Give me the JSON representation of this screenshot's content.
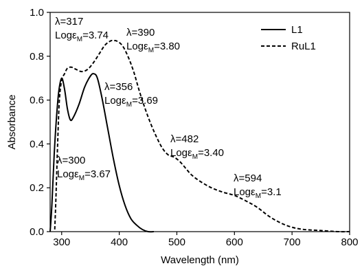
{
  "chart_data": {
    "type": "line",
    "xlabel": "Wavelength (nm)",
    "ylabel": "Absorbance",
    "xlim": [
      280,
      800
    ],
    "ylim": [
      0.0,
      1.0
    ],
    "x_ticks": [
      300,
      400,
      500,
      600,
      700,
      800
    ],
    "x_tick_labels": [
      "300",
      "400",
      "500",
      "600",
      "700",
      "800"
    ],
    "y_ticks": [
      0.0,
      0.2,
      0.4,
      0.6,
      0.8,
      1.0
    ],
    "y_tick_labels": [
      "0.0",
      "0.2",
      "0.4",
      "0.6",
      "0.8",
      "1.0"
    ],
    "grid": false,
    "legend_position": "top-right",
    "legend": [
      {
        "label": "L1",
        "style": "solid"
      },
      {
        "label": "RuL1",
        "style": "dashed"
      }
    ],
    "series": [
      {
        "name": "L1",
        "style": "solid",
        "color": "#000000",
        "points": [
          [
            280,
            0.0
          ],
          [
            283,
            0.12
          ],
          [
            287,
            0.35
          ],
          [
            291,
            0.52
          ],
          [
            295,
            0.64
          ],
          [
            300,
            0.7
          ],
          [
            305,
            0.65
          ],
          [
            310,
            0.56
          ],
          [
            315,
            0.51
          ],
          [
            320,
            0.52
          ],
          [
            330,
            0.58
          ],
          [
            340,
            0.66
          ],
          [
            350,
            0.71
          ],
          [
            356,
            0.72
          ],
          [
            362,
            0.7
          ],
          [
            370,
            0.61
          ],
          [
            380,
            0.47
          ],
          [
            390,
            0.33
          ],
          [
            400,
            0.21
          ],
          [
            410,
            0.12
          ],
          [
            420,
            0.06
          ],
          [
            430,
            0.03
          ],
          [
            440,
            0.01
          ],
          [
            450,
            0.0
          ],
          [
            460,
            0.0
          ]
        ]
      },
      {
        "name": "RuL1",
        "style": "dashed",
        "color": "#000000",
        "points": [
          [
            288,
            0.01
          ],
          [
            290,
            0.15
          ],
          [
            293,
            0.4
          ],
          [
            296,
            0.6
          ],
          [
            300,
            0.69
          ],
          [
            305,
            0.72
          ],
          [
            310,
            0.745
          ],
          [
            317,
            0.75
          ],
          [
            325,
            0.74
          ],
          [
            335,
            0.73
          ],
          [
            345,
            0.74
          ],
          [
            355,
            0.77
          ],
          [
            365,
            0.81
          ],
          [
            375,
            0.85
          ],
          [
            385,
            0.87
          ],
          [
            390,
            0.87
          ],
          [
            395,
            0.87
          ],
          [
            405,
            0.85
          ],
          [
            415,
            0.8
          ],
          [
            425,
            0.73
          ],
          [
            435,
            0.64
          ],
          [
            445,
            0.56
          ],
          [
            455,
            0.49
          ],
          [
            465,
            0.43
          ],
          [
            475,
            0.38
          ],
          [
            485,
            0.35
          ],
          [
            495,
            0.34
          ],
          [
            505,
            0.32
          ],
          [
            515,
            0.29
          ],
          [
            525,
            0.26
          ],
          [
            540,
            0.23
          ],
          [
            560,
            0.2
          ],
          [
            580,
            0.18
          ],
          [
            600,
            0.165
          ],
          [
            620,
            0.14
          ],
          [
            640,
            0.11
          ],
          [
            660,
            0.07
          ],
          [
            680,
            0.04
          ],
          [
            700,
            0.02
          ],
          [
            720,
            0.01
          ],
          [
            750,
            0.005
          ],
          [
            780,
            0.0
          ],
          [
            800,
            0.0
          ]
        ]
      }
    ],
    "annotations": [
      {
        "lambda": "λ=317",
        "loge_prefix": "Logε",
        "loge_sub": "M",
        "loge_value": "=3.74"
      },
      {
        "lambda": "λ=390",
        "loge_prefix": "Logε",
        "loge_sub": "M",
        "loge_value": "=3.80"
      },
      {
        "lambda": "λ=356",
        "loge_prefix": "Logε",
        "loge_sub": "M",
        "loge_value": "=3.69"
      },
      {
        "lambda": "λ=300",
        "loge_prefix": "Logε",
        "loge_sub": "M",
        "loge_value": "=3.67"
      },
      {
        "lambda": "λ=482",
        "loge_prefix": "Logε",
        "loge_sub": "M",
        "loge_value": "=3.40"
      },
      {
        "lambda": "λ=594",
        "loge_prefix": "Logε",
        "loge_sub": "M",
        "loge_value": "=3.1"
      }
    ]
  }
}
